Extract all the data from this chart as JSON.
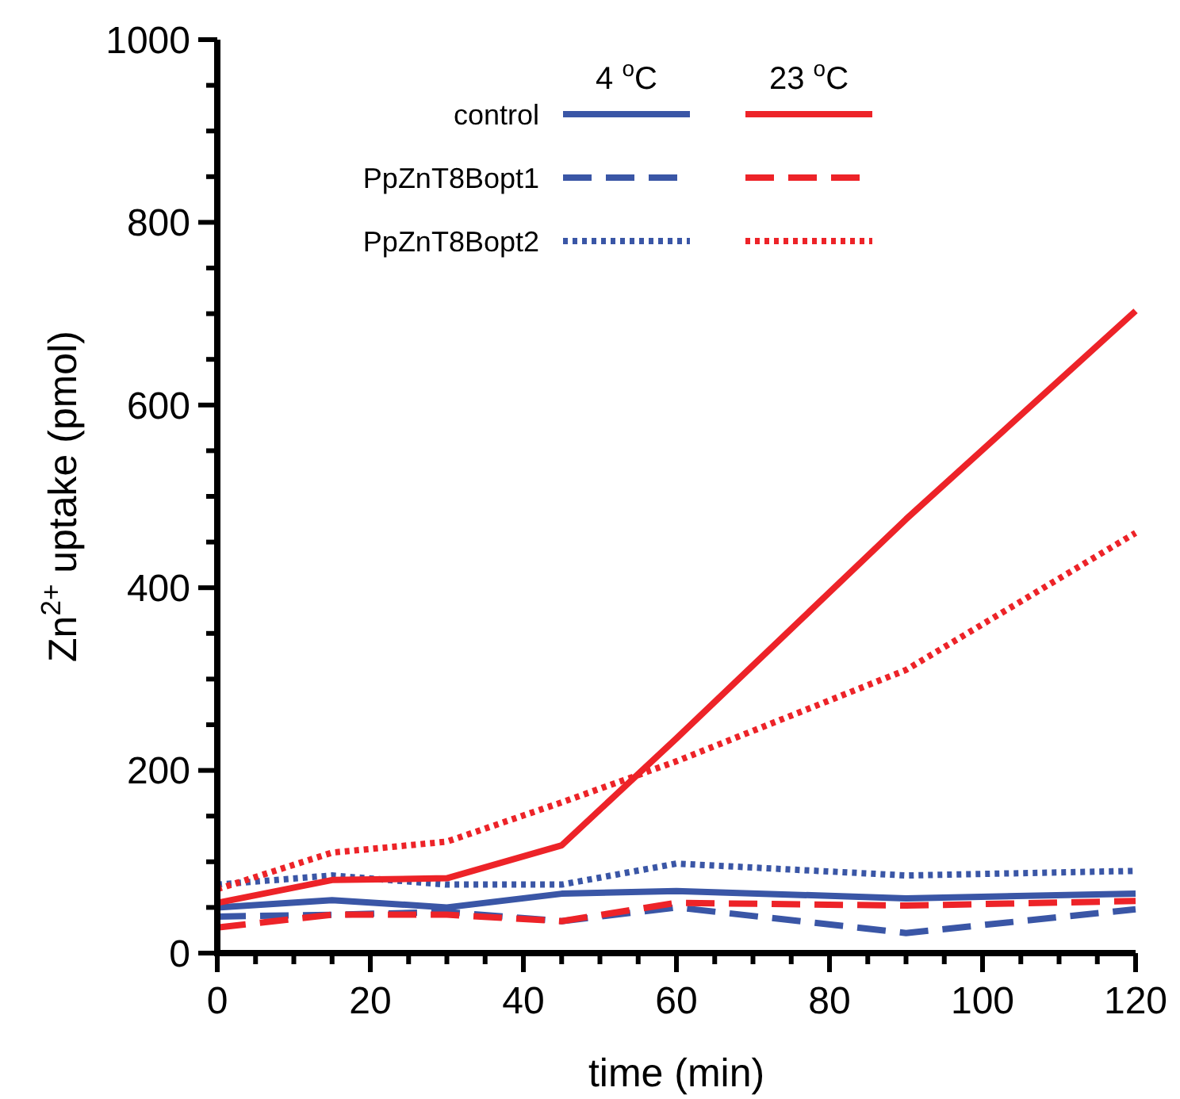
{
  "chart_data": {
    "type": "line",
    "xlabel": "time (min)",
    "ylabel": "Zn$^{2+}$ uptake (pmol)",
    "legend": "top",
    "grid": false,
    "annotations": [
      "4 $^{o}$C",
      "23 $^{o}$C"
    ],
    "x": [
      0,
      15,
      30,
      45,
      60,
      90,
      120
    ],
    "xlim": [
      0,
      120
    ],
    "ylim": [
      0,
      1000
    ],
    "xticks": [
      0,
      {
        "value": 5,
        "label": null
      },
      {
        "value": 10,
        "label": null
      },
      {
        "value": 15,
        "label": null
      },
      20,
      {
        "value": 25,
        "label": null
      },
      {
        "value": 30,
        "label": null
      },
      {
        "value": 35,
        "label": null
      },
      40,
      {
        "value": 45,
        "label": null
      },
      {
        "value": 50,
        "label": null
      },
      {
        "value": 55,
        "label": null
      },
      60,
      {
        "value": 65,
        "label": null
      },
      {
        "value": 70,
        "label": null
      },
      {
        "value": 75,
        "label": null
      },
      80,
      {
        "value": 85,
        "label": null
      },
      {
        "value": 90,
        "label": null
      },
      {
        "value": 95,
        "label": null
      },
      100,
      {
        "value": 105,
        "label": null
      },
      {
        "value": 110,
        "label": null
      },
      {
        "value": 115,
        "label": null
      },
      120
    ],
    "yticks": [
      0,
      {
        "value": 50,
        "label": null
      },
      {
        "value": 100,
        "label": null
      },
      {
        "value": 150,
        "label": null
      },
      200,
      {
        "value": 250,
        "label": null
      },
      {
        "value": 300,
        "label": null
      },
      {
        "value": 350,
        "label": null
      },
      400,
      {
        "value": 450,
        "label": null
      },
      {
        "value": 500,
        "label": null
      },
      {
        "value": 550,
        "label": null
      },
      600,
      {
        "value": 650,
        "label": null
      },
      {
        "value": 700,
        "label": null
      },
      {
        "value": 750,
        "label": null
      },
      800,
      {
        "value": 850,
        "label": null
      },
      {
        "value": 900,
        "label": null
      },
      {
        "value": 950,
        "label": null
      },
      1000
    ],
    "series": [
      {
        "name": "control",
        "color": "#3a56a6",
        "line_style": "solid",
        "values": [
          50,
          58,
          50,
          65,
          68,
          60,
          65
        ]
      },
      {
        "name": "PpZnT8Bopt1",
        "color": "#3a56a6",
        "line_style": "dashed",
        "values": [
          40,
          42,
          45,
          35,
          50,
          22,
          48
        ]
      },
      {
        "name": "PpZnT8Bopt2",
        "color": "#3a56a6",
        "line_style": "dotted",
        "values": [
          75,
          85,
          75,
          75,
          98,
          85,
          90
        ]
      },
      {
        "color": "#ed2328",
        "line_style": "solid",
        "values": [
          55,
          80,
          82,
          118,
          235,
          475,
          703
        ]
      },
      {
        "color": "#ed2328",
        "line_style": "dashed",
        "values": [
          28,
          42,
          42,
          35,
          55,
          52,
          57
        ]
      },
      {
        "color": "#ed2328",
        "line_style": "dotted",
        "values": [
          70,
          110,
          122,
          165,
          210,
          310,
          460
        ]
      }
    ]
  }
}
